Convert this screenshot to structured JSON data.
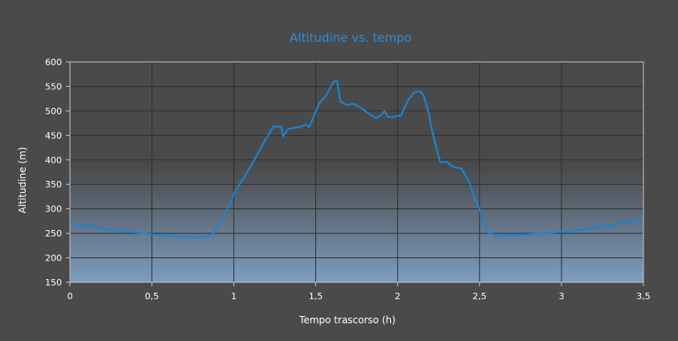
{
  "chart_data": {
    "type": "area",
    "title": "Altitudine vs. tempo",
    "xlabel": "Tempo trascorso (h)",
    "ylabel": "Altitudine (m)",
    "xlim": [
      0,
      3.5
    ],
    "ylim": [
      150,
      600
    ],
    "x_ticks": [
      "0",
      "0,5",
      "1",
      "1,5",
      "2",
      "2,5",
      "3",
      "3,5"
    ],
    "y_ticks": [
      "150",
      "200",
      "250",
      "300",
      "350",
      "400",
      "450",
      "500",
      "550",
      "600"
    ],
    "grid": true,
    "series": [
      {
        "points": [
          [
            0,
            270
          ],
          [
            0.05,
            267
          ],
          [
            0.1,
            264
          ],
          [
            0.14,
            266
          ],
          [
            0.15,
            262
          ],
          [
            0.2,
            259
          ],
          [
            0.3,
            255
          ],
          [
            0.4,
            252
          ],
          [
            0.5,
            248
          ],
          [
            0.6,
            245
          ],
          [
            0.7,
            243
          ],
          [
            0.8,
            242
          ],
          [
            0.84,
            243
          ],
          [
            0.88,
            252
          ],
          [
            0.92,
            275
          ],
          [
            0.97,
            305
          ],
          [
            1.0,
            330
          ],
          [
            1.05,
            358
          ],
          [
            1.1,
            385
          ],
          [
            1.15,
            415
          ],
          [
            1.19,
            440
          ],
          [
            1.22,
            455
          ],
          [
            1.24,
            468
          ],
          [
            1.29,
            468
          ],
          [
            1.3,
            448
          ],
          [
            1.33,
            462
          ],
          [
            1.36,
            465
          ],
          [
            1.4,
            467
          ],
          [
            1.44,
            472
          ],
          [
            1.46,
            467
          ],
          [
            1.49,
            490
          ],
          [
            1.52,
            515
          ],
          [
            1.56,
            530
          ],
          [
            1.59,
            548
          ],
          [
            1.61,
            560
          ],
          [
            1.63,
            561
          ],
          [
            1.65,
            520
          ],
          [
            1.69,
            512
          ],
          [
            1.73,
            515
          ],
          [
            1.78,
            505
          ],
          [
            1.82,
            495
          ],
          [
            1.87,
            485
          ],
          [
            1.9,
            492
          ],
          [
            1.92,
            500
          ],
          [
            1.94,
            488
          ],
          [
            1.97,
            487
          ],
          [
            2.0,
            490
          ],
          [
            2.02,
            490
          ],
          [
            2.06,
            520
          ],
          [
            2.1,
            538
          ],
          [
            2.14,
            540
          ],
          [
            2.16,
            530
          ],
          [
            2.19,
            495
          ],
          [
            2.21,
            460
          ],
          [
            2.24,
            420
          ],
          [
            2.26,
            395
          ],
          [
            2.3,
            396
          ],
          [
            2.33,
            388
          ],
          [
            2.35,
            385
          ],
          [
            2.39,
            382
          ],
          [
            2.44,
            352
          ],
          [
            2.47,
            320
          ],
          [
            2.5,
            300
          ],
          [
            2.53,
            262
          ],
          [
            2.56,
            250
          ],
          [
            2.61,
            245
          ],
          [
            2.7,
            246
          ],
          [
            2.9,
            250
          ],
          [
            3.1,
            256
          ],
          [
            3.3,
            266
          ],
          [
            3.5,
            279
          ]
        ]
      }
    ]
  }
}
